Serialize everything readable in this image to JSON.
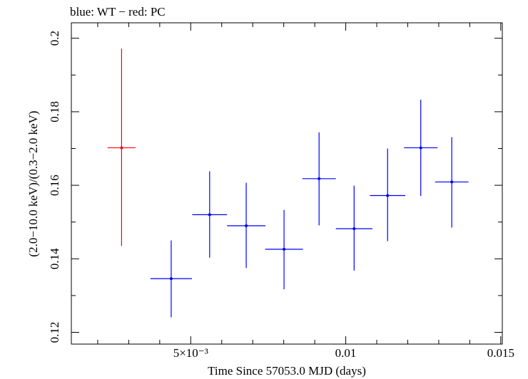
{
  "chart_data": {
    "type": "scatter",
    "title": "blue: WT − red: PC",
    "xlabel": "Time Since 57053.0 MJD (days)",
    "ylabel": "(2.0−10.0 keV)/(0.3−2.0 keV)",
    "xlim": [
      0.00115,
      0.01505
    ],
    "ylim": [
      0.1168,
      0.2042
    ],
    "x_ticks": [
      {
        "value": 0.005,
        "label": "5×10⁻³"
      },
      {
        "value": 0.01,
        "label": "0.01"
      },
      {
        "value": 0.015,
        "label": "0.015"
      }
    ],
    "x_minor_step": 0.001,
    "y_ticks": [
      {
        "value": 0.12,
        "label": "0.12"
      },
      {
        "value": 0.14,
        "label": "0.14"
      },
      {
        "value": 0.16,
        "label": "0.16"
      },
      {
        "value": 0.18,
        "label": "0.18"
      },
      {
        "value": 0.2,
        "label": "0.2"
      }
    ],
    "y_minor_step": 0.01,
    "series": [
      {
        "name": "PC",
        "color": "#ff0000",
        "points": [
          {
            "x": 0.00277,
            "xerr": 0.00045,
            "y": 0.1702,
            "yerr_low": 0.0267,
            "yerr_high": 0.027
          }
        ]
      },
      {
        "name": "WT",
        "color": "#0000ff",
        "points": [
          {
            "x": 0.00437,
            "xerr": 0.00067,
            "y": 0.1346,
            "yerr_low": 0.0105,
            "yerr_high": 0.0104
          },
          {
            "x": 0.00561,
            "xerr": 0.00056,
            "y": 0.152,
            "yerr_low": 0.0117,
            "yerr_high": 0.0118
          },
          {
            "x": 0.00679,
            "xerr": 0.00062,
            "y": 0.149,
            "yerr_low": 0.0115,
            "yerr_high": 0.0117
          },
          {
            "x": 0.00801,
            "xerr": 0.00061,
            "y": 0.1426,
            "yerr_low": 0.0109,
            "yerr_high": 0.0107
          },
          {
            "x": 0.00914,
            "xerr": 0.00054,
            "y": 0.1618,
            "yerr_low": 0.0127,
            "yerr_high": 0.0126
          },
          {
            "x": 0.01027,
            "xerr": 0.00059,
            "y": 0.1482,
            "yerr_low": 0.0114,
            "yerr_high": 0.0117
          },
          {
            "x": 0.01135,
            "xerr": 0.00057,
            "y": 0.1572,
            "yerr_low": 0.0124,
            "yerr_high": 0.0128
          },
          {
            "x": 0.01242,
            "xerr": 0.00054,
            "y": 0.1702,
            "yerr_low": 0.0131,
            "yerr_high": 0.0131
          },
          {
            "x": 0.01342,
            "xerr": 0.00054,
            "y": 0.1609,
            "yerr_low": 0.0124,
            "yerr_high": 0.0122
          }
        ]
      }
    ]
  }
}
